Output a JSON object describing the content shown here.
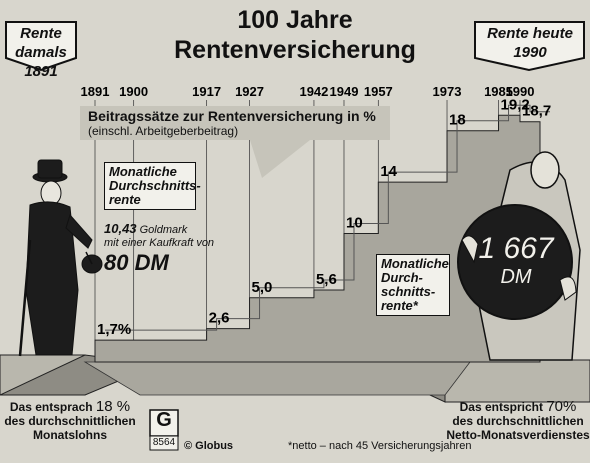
{
  "header": {
    "title_line1": "100 Jahre",
    "title_line2": "Rentenversicherung",
    "left_flag": {
      "label": "Rente damals",
      "year": "1891"
    },
    "right_flag": {
      "label": "Rente heute",
      "year": "1990"
    }
  },
  "chart_data": {
    "type": "line",
    "title": "Beitragssätze zur Rentenversicherung in %",
    "subtitle": "(einschl. Arbeitgeberbeitrag)",
    "year_ticks": [
      "1891",
      "1900",
      "1917",
      "1927",
      "1942",
      "1949",
      "1957",
      "1973",
      "1985",
      "1990"
    ],
    "x": [
      1891,
      1917,
      1927,
      1942,
      1949,
      1957,
      1973,
      1985,
      1990
    ],
    "values": [
      1.7,
      2.6,
      5.0,
      5.6,
      10,
      14,
      18,
      19.2,
      18.7
    ],
    "labels": [
      "1,7%",
      "2,6",
      "5,0",
      "5,6",
      "10",
      "14",
      "18",
      "19,2",
      "18,7"
    ],
    "ylim": [
      0,
      20
    ]
  },
  "annotations": {
    "monthly_then_title": "Monatliche Durchschnitts-rente",
    "monthly_then_amount": "10,43",
    "monthly_then_text1": "Goldmark",
    "monthly_then_text2": "mit einer Kaufkraft von",
    "monthly_then_value": "80 DM",
    "monthly_now_title": "Monatliche Durch-schnitts-rente*",
    "coin_amount": "1 667",
    "coin_unit": "DM"
  },
  "footer": {
    "left_line1": "Das entsprach",
    "left_percent": "18 %",
    "left_line2": "des durchschnittlichen",
    "left_line3": "Monatslohns",
    "right_line1": "Das entspricht",
    "right_percent": "70%",
    "right_line2": "des durchschnittlichen",
    "right_line3": "Netto-Monatsverdienstes",
    "source": "© Globus",
    "code": "8564",
    "logo_letter": "G",
    "note": "*netto – nach 45 Versicherungsjahren"
  }
}
